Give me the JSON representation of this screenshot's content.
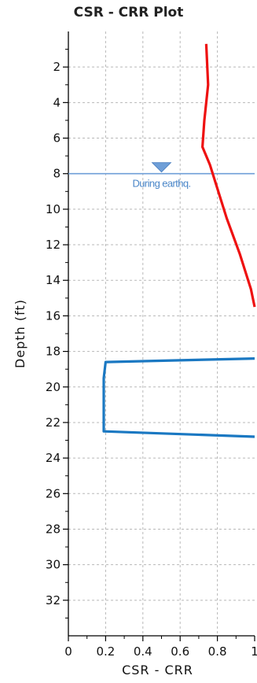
{
  "chart_data": {
    "type": "line",
    "title": "CSR - CRR Plot",
    "xlabel": "CSR - CRR",
    "ylabel": "Depth (ft)",
    "xlim": [
      0,
      1
    ],
    "ylim": [
      0,
      34
    ],
    "y_inverted": true,
    "grid": true,
    "x_ticks": [
      0,
      0.2,
      0.4,
      0.6,
      0.8,
      1
    ],
    "x_tick_labels": [
      "0",
      "0.2",
      "0.4",
      "0.6",
      "0.8",
      "1"
    ],
    "y_ticks": [
      2,
      4,
      6,
      8,
      10,
      12,
      14,
      16,
      18,
      20,
      22,
      24,
      26,
      28,
      30,
      32
    ],
    "y_tick_labels": [
      "2",
      "4",
      "6",
      "8",
      "10",
      "12",
      "14",
      "16",
      "18",
      "20",
      "22",
      "24",
      "26",
      "28",
      "30",
      "32"
    ],
    "series": [
      {
        "color": "#ee1111",
        "points": [
          [
            0.74,
            0.7
          ],
          [
            0.75,
            3.0
          ],
          [
            0.73,
            5.0
          ],
          [
            0.72,
            6.5
          ],
          [
            0.76,
            7.5
          ],
          [
            0.79,
            8.5
          ],
          [
            0.85,
            10.5
          ],
          [
            0.92,
            12.5
          ],
          [
            0.98,
            14.5
          ],
          [
            1.0,
            15.5
          ]
        ]
      },
      {
        "color": "#1a78c2",
        "points": [
          [
            1.0,
            18.4
          ],
          [
            0.2,
            18.6
          ],
          [
            0.19,
            19.5
          ],
          [
            0.19,
            21.5
          ],
          [
            0.19,
            22.5
          ],
          [
            1.0,
            22.8
          ]
        ]
      }
    ],
    "water_table": {
      "depth": 8,
      "x": 0.5,
      "label": "During earthq.",
      "color": "#6f9fd8"
    }
  }
}
